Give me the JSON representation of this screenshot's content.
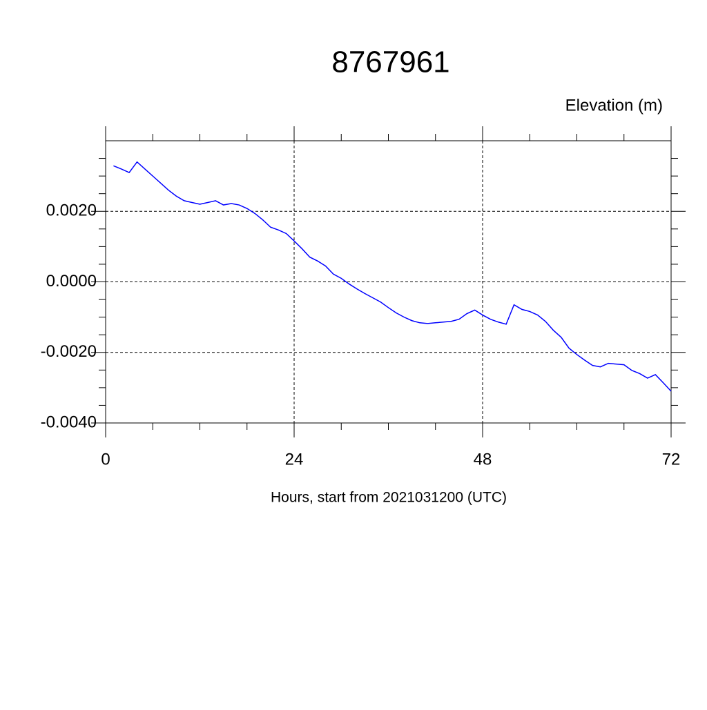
{
  "chart_data": {
    "type": "line",
    "title": "8767961",
    "y_label": "Elevation (m)",
    "x_label": "Hours, start from 2021031200 (UTC)",
    "x": [
      1,
      2,
      3,
      4,
      5,
      6,
      7,
      8,
      9,
      10,
      11,
      12,
      13,
      14,
      15,
      16,
      17,
      18,
      19,
      20,
      21,
      22,
      23,
      24,
      25,
      26,
      27,
      28,
      29,
      30,
      31,
      32,
      33,
      34,
      35,
      36,
      37,
      38,
      39,
      40,
      41,
      42,
      43,
      44,
      45,
      46,
      47,
      48,
      49,
      50,
      51,
      52,
      53,
      54,
      55,
      56,
      57,
      58,
      59,
      60,
      61,
      62,
      63,
      64,
      65,
      66,
      67,
      68,
      69,
      70,
      71,
      72
    ],
    "series": [
      {
        "color": "#0000ff",
        "values": [
          0.00329,
          0.0032,
          0.0031,
          0.0034,
          0.0032,
          0.003,
          0.0028,
          0.0026,
          0.00243,
          0.0023,
          0.00225,
          0.0022,
          0.00225,
          0.0023,
          0.00218,
          0.00222,
          0.00218,
          0.00208,
          0.00194,
          0.00176,
          0.00155,
          0.00147,
          0.00137,
          0.00116,
          0.00094,
          0.0007,
          0.00059,
          0.00045,
          0.00022,
          0.0001,
          -6e-05,
          -0.0002,
          -0.00033,
          -0.00045,
          -0.00057,
          -0.00073,
          -0.00088,
          -0.001,
          -0.0011,
          -0.00116,
          -0.00118,
          -0.00116,
          -0.00114,
          -0.00112,
          -0.00106,
          -0.0009,
          -0.0008,
          -0.00094,
          -0.00106,
          -0.00114,
          -0.0012,
          -0.00065,
          -0.00078,
          -0.00084,
          -0.00094,
          -0.00112,
          -0.00137,
          -0.00157,
          -0.00188,
          -0.00206,
          -0.00222,
          -0.00237,
          -0.00241,
          -0.00231,
          -0.00233,
          -0.00235,
          -0.00251,
          -0.0026,
          -0.00273,
          -0.00263,
          -0.00286,
          -0.0031
        ]
      }
    ],
    "xlim": [
      0,
      72
    ],
    "xticks": [
      0,
      24,
      48,
      72
    ],
    "ylim": [
      -0.004,
      0.004
    ],
    "yticks": [
      {
        "value": -0.004,
        "label": "-0.0040"
      },
      {
        "value": -0.002,
        "label": "-0.0020"
      },
      {
        "value": 0,
        "label": "0.0000"
      },
      {
        "value": 0.002,
        "label": "0.0020"
      }
    ],
    "grid": true
  }
}
